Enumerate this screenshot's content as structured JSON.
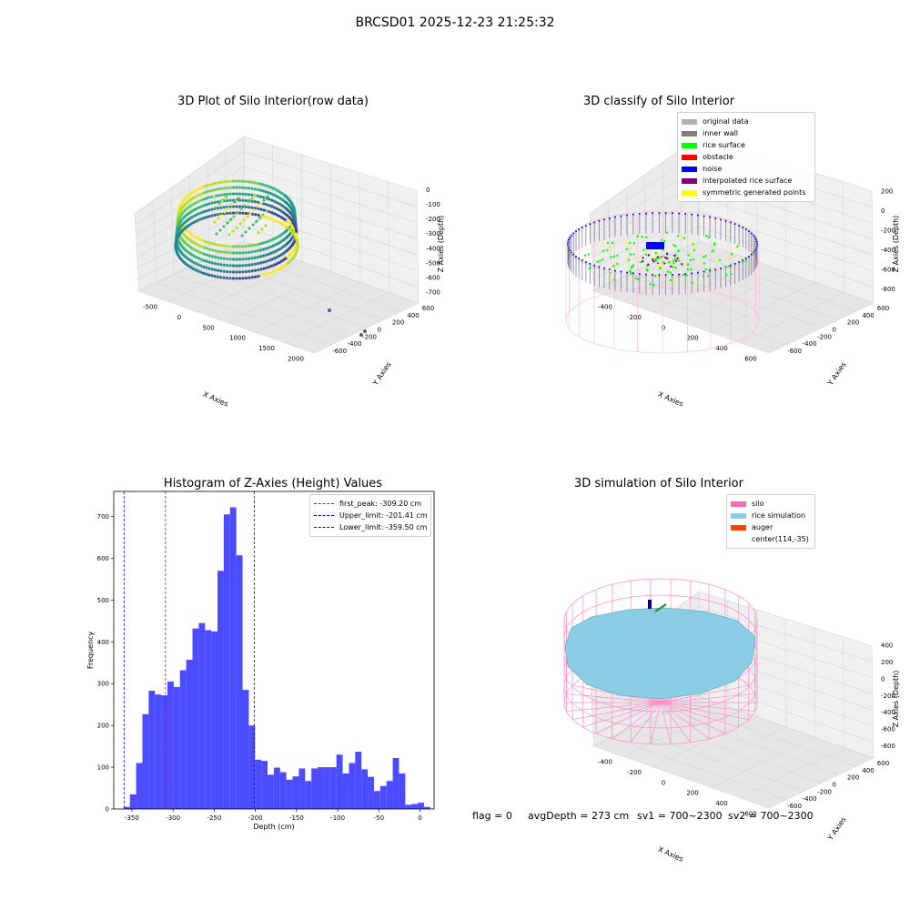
{
  "suptitle": "BRCSD01 2025-12-23 21:25:32",
  "chart_data": [
    {
      "type": "scatter3d",
      "title": "3D Plot of Silo Interior(row data)",
      "xlabel": "X Axies",
      "ylabel": "Y Axies",
      "zlabel": "Z Axies (Depth)",
      "x_ticks": [
        "-500",
        "0",
        "500",
        "1000",
        "1500",
        "2000"
      ],
      "y_ticks": [
        "600",
        "400",
        "200",
        "0",
        "-200",
        "-400",
        "-600"
      ],
      "z_ticks": [
        "0",
        "-100",
        "-200",
        "-300",
        "-400",
        "-500",
        "-600",
        "-700"
      ],
      "colormap": "viridis"
    },
    {
      "type": "scatter3d",
      "title": "3D classify of Silo Interior",
      "xlabel": "X Axies",
      "ylabel": "Y Axies",
      "zlabel": "Z Axies (Depth)",
      "x_ticks": [
        "-400",
        "-200",
        "0",
        "200",
        "400",
        "600"
      ],
      "y_ticks": [
        "600",
        "400",
        "200",
        "0",
        "-200",
        "-400",
        "-600"
      ],
      "z_ticks": [
        "200",
        "0",
        "-200",
        "-400",
        "-600",
        "-800"
      ],
      "legend": [
        {
          "label": "original data",
          "color": "#b0b0b0"
        },
        {
          "label": "inner wall",
          "color": "#808080"
        },
        {
          "label": "rice surface",
          "color": "#00ff00"
        },
        {
          "label": "obstacle",
          "color": "#ff0000"
        },
        {
          "label": "noise",
          "color": "#0000ff"
        },
        {
          "label": "interpolated rice surface",
          "color": "#800080"
        },
        {
          "label": "symmetric generated points",
          "color": "#ffff00"
        }
      ]
    },
    {
      "type": "bar",
      "title": "Histogram of Z-Axies (Height) Values",
      "xlabel": "Depth (cm)",
      "ylabel": "Frequency",
      "xlim": [
        -372,
        17
      ],
      "ylim": [
        0,
        760
      ],
      "x_ticks": [
        -350,
        -300,
        -250,
        -200,
        -150,
        -100,
        -50,
        0
      ],
      "y_ticks": [
        0,
        100,
        200,
        300,
        400,
        500,
        600,
        700
      ],
      "bin_width": 7.6,
      "bars": [
        {
          "x": -360,
          "v": 5
        },
        {
          "x": -352.4,
          "v": 35
        },
        {
          "x": -344.8,
          "v": 110
        },
        {
          "x": -337.2,
          "v": 227
        },
        {
          "x": -329.6,
          "v": 283
        },
        {
          "x": -322,
          "v": 274
        },
        {
          "x": -314.4,
          "v": 272
        },
        {
          "x": -306.8,
          "v": 305
        },
        {
          "x": -299.2,
          "v": 292
        },
        {
          "x": -291.6,
          "v": 332
        },
        {
          "x": -284,
          "v": 357
        },
        {
          "x": -276.4,
          "v": 432
        },
        {
          "x": -268.8,
          "v": 445
        },
        {
          "x": -261.2,
          "v": 428
        },
        {
          "x": -253.6,
          "v": 425
        },
        {
          "x": -246,
          "v": 570
        },
        {
          "x": -238.4,
          "v": 705
        },
        {
          "x": -230.8,
          "v": 722
        },
        {
          "x": -223.2,
          "v": 607
        },
        {
          "x": -215.6,
          "v": 285
        },
        {
          "x": -208,
          "v": 200
        },
        {
          "x": -200.4,
          "v": 118
        },
        {
          "x": -192.8,
          "v": 115
        },
        {
          "x": -185.2,
          "v": 82
        },
        {
          "x": -177.6,
          "v": 99
        },
        {
          "x": -170,
          "v": 88
        },
        {
          "x": -162.4,
          "v": 70
        },
        {
          "x": -154.8,
          "v": 78
        },
        {
          "x": -147.2,
          "v": 97
        },
        {
          "x": -139.6,
          "v": 67
        },
        {
          "x": -132,
          "v": 97
        },
        {
          "x": -124.4,
          "v": 100
        },
        {
          "x": -116.8,
          "v": 100
        },
        {
          "x": -109.2,
          "v": 100
        },
        {
          "x": -101.6,
          "v": 130
        },
        {
          "x": -94,
          "v": 85
        },
        {
          "x": -86.4,
          "v": 110
        },
        {
          "x": -78.8,
          "v": 137
        },
        {
          "x": -71.2,
          "v": 95
        },
        {
          "x": -63.6,
          "v": 77
        },
        {
          "x": -56,
          "v": 43
        },
        {
          "x": -48.4,
          "v": 55
        },
        {
          "x": -40.8,
          "v": 67
        },
        {
          "x": -33.2,
          "v": 122
        },
        {
          "x": -25.6,
          "v": 85
        },
        {
          "x": -18,
          "v": 10
        },
        {
          "x": -10.4,
          "v": 12
        },
        {
          "x": -2.8,
          "v": 15
        },
        {
          "x": 4.8,
          "v": 5
        }
      ],
      "lines": [
        {
          "label": "first_peak: -309.20 cm",
          "x": -309.2,
          "color": "#ff0000"
        },
        {
          "label": "Upper_limit: -201.41 cm",
          "x": -201.41,
          "color": "#0000ff"
        },
        {
          "label": "Lower_limit: -359.50 cm",
          "x": -359.5,
          "color": "#0000ff"
        }
      ],
      "bar_color": "#4b4bff"
    },
    {
      "type": "surface3d",
      "title": "3D simulation of Silo Interior",
      "xlabel": "X Axies",
      "ylabel": "Y Axies",
      "zlabel": "Z Axies (Depth)",
      "x_ticks": [
        "-400",
        "-200",
        "0",
        "200",
        "400",
        "600"
      ],
      "y_ticks": [
        "600",
        "400",
        "200",
        "0",
        "-200",
        "-400",
        "-600"
      ],
      "z_ticks": [
        "400",
        "200",
        "0",
        "-200",
        "-400",
        "-600",
        "-800"
      ],
      "legend": [
        {
          "label": "silo",
          "color": "#ff69b4"
        },
        {
          "label": "rice simulation",
          "color": "#87ceeb"
        },
        {
          "label": "auger",
          "color": "#ff4500"
        },
        {
          "label": "center(114,-35)",
          "color": ""
        }
      ]
    }
  ],
  "footer": {
    "flag": "flag = 0",
    "avg": "avgDepth = 273 cm",
    "sv1": "sv1 = 700~2300",
    "sv2": "sv2 = 700~2300"
  }
}
